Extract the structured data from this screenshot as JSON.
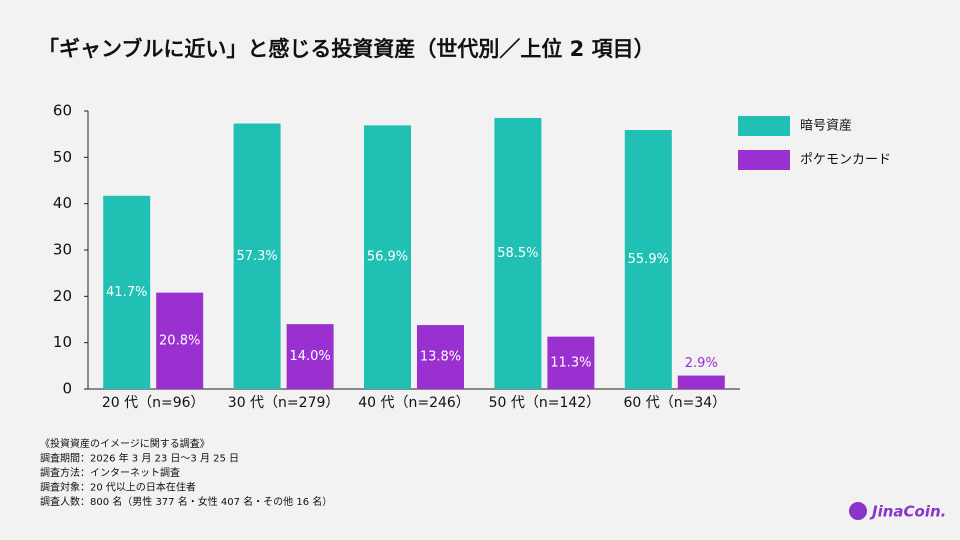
{
  "chart_data": {
    "type": "bar",
    "title": "「ギャンブルに近い」と感じる投資資産（世代別／上位 2 項目）",
    "categories": [
      "20 代（n=96）",
      "30 代（n=279）",
      "40 代（n=246）",
      "50 代（n=142）",
      "60 代（n=34）"
    ],
    "series": [
      {
        "name": "暗号資産",
        "color": "#20c0b4",
        "values": [
          41.7,
          57.3,
          56.9,
          58.5,
          55.9
        ],
        "value_labels": [
          "41.7%",
          "57.3%",
          "56.9%",
          "58.5%",
          "55.9%"
        ]
      },
      {
        "name": "ポケモンカード",
        "color": "#9b30d0",
        "values": [
          20.8,
          14.0,
          13.8,
          11.3,
          2.9
        ],
        "value_labels": [
          "20.8%",
          "14.0%",
          "13.8%",
          "11.3%",
          "2.9%"
        ]
      }
    ],
    "ylim": [
      0,
      60
    ],
    "yticks": [
      0,
      10,
      20,
      30,
      40,
      50,
      60
    ],
    "grid": false,
    "legend": "right"
  },
  "notes": [
    "《投資資産のイメージに関する調査》",
    "調査期間：2026 年 3 月 23 日〜3 月 25 日",
    "調査方法：インターネット調査",
    "調査対象：20 代以上の日本在住者",
    "調査人数：800 名（男性 377 名・女性 407 名・その他 16 名）"
  ],
  "logo": "JinaCoin."
}
